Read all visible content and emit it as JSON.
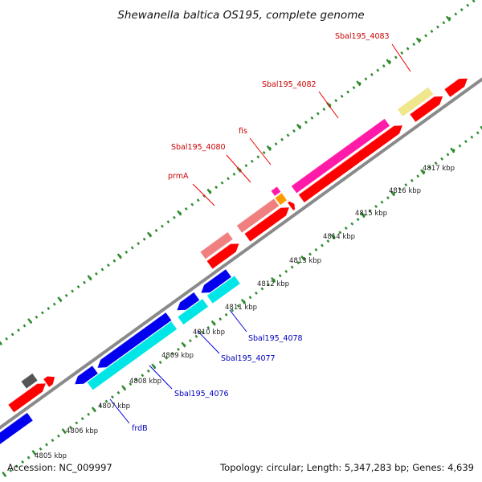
{
  "title": "Shewanella baltica OS195, complete genome",
  "footer": {
    "accession": "Accession: NC_009997",
    "summary": "Topology: circular; Length: 5,347,283 bp; Genes: 4,639"
  },
  "colors": {
    "background": "#ffffff",
    "backbone": "#8a8a8a",
    "ticks": "#2e8b2e",
    "label_red": "#cc0000",
    "label_blue": "#0000bb",
    "leader_red": "#ee0000",
    "leader_blue": "#0000dd"
  },
  "kbp_ticks": [
    "4805 kbp",
    "4806 kbp",
    "4807 kbp",
    "4808 kbp",
    "4809 kbp",
    "4810 kbp",
    "4811 kbp",
    "4812 kbp",
    "4813 kbp",
    "4814 kbp",
    "4815 kbp",
    "4816 kbp",
    "4817 kbp"
  ],
  "gene_labels": [
    {
      "text": "Sbal195_4083",
      "color": "red"
    },
    {
      "text": "Sbal195_4082",
      "color": "red"
    },
    {
      "text": "fis",
      "color": "red"
    },
    {
      "text": "Sbal195_4080",
      "color": "red"
    },
    {
      "text": "prmA",
      "color": "red"
    },
    {
      "text": "Sbal195_4078",
      "color": "blue"
    },
    {
      "text": "Sbal195_4077",
      "color": "blue"
    },
    {
      "text": "Sbal195_4076",
      "color": "blue"
    },
    {
      "text": "frdB",
      "color": "blue"
    }
  ]
}
